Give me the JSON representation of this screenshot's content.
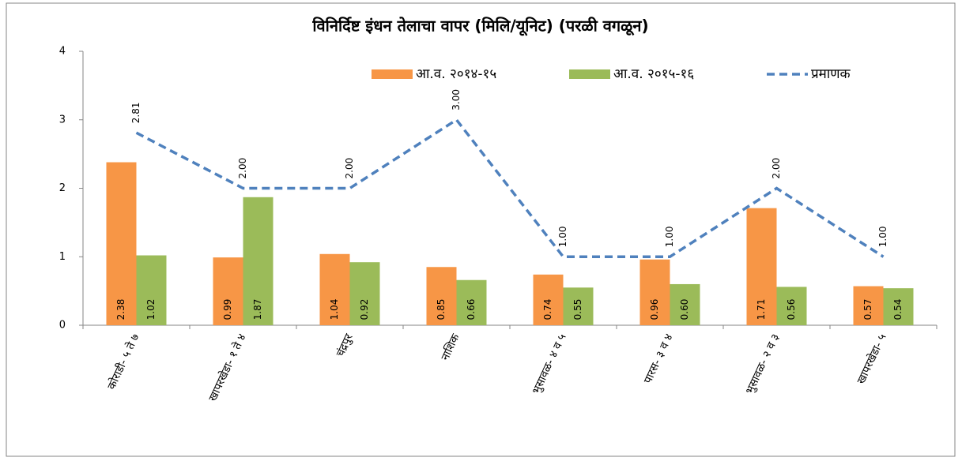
{
  "chart_data": {
    "type": "bar",
    "title": "विनिर्दिष्ट इंधन तेलाचा वापर (मिलि/यूनिट) (परळी वगळून)",
    "categories": [
      "कोराडी- ५ ते ७",
      "खापरखेडा- १ ते ४",
      "चंद्रपुर",
      "नाशिक",
      "भुसावळ- ४ व ५",
      "पारस- ३ व ४",
      "भुसावळ- २ व ३",
      "खापरखेडा- ५"
    ],
    "series": [
      {
        "name": "आ.व. २०१४-१५",
        "type": "bar",
        "color": "#f79646",
        "values": [
          2.38,
          0.99,
          1.04,
          0.85,
          0.74,
          0.96,
          1.71,
          0.57
        ],
        "value_labels": [
          "2.38",
          "0.99",
          "1.04",
          "0.85",
          "0.74",
          "0.96",
          "1.71",
          "0.57"
        ]
      },
      {
        "name": "आ.व. २०१५-१६",
        "type": "bar",
        "color": "#9bbb59",
        "values": [
          1.02,
          1.87,
          0.92,
          0.66,
          0.55,
          0.6,
          0.56,
          0.54
        ],
        "value_labels": [
          "1.02",
          "1.87",
          "0.92",
          "0.66",
          "0.55",
          "0.60",
          "0.56",
          "0.54"
        ]
      },
      {
        "name": "प्रमाणक",
        "type": "line",
        "color": "#4f81bd",
        "dashed": true,
        "values": [
          2.81,
          2,
          2,
          3,
          1,
          1,
          2,
          1
        ],
        "value_labels": [
          "2.81",
          "2.00",
          "2.00",
          "3.00",
          "1.00",
          "1.00",
          "2.00",
          "1.00"
        ]
      }
    ],
    "ylim": [
      0,
      4
    ],
    "yticks": [
      0,
      1,
      2,
      3,
      4
    ],
    "grid": false,
    "legend": "top-right"
  }
}
